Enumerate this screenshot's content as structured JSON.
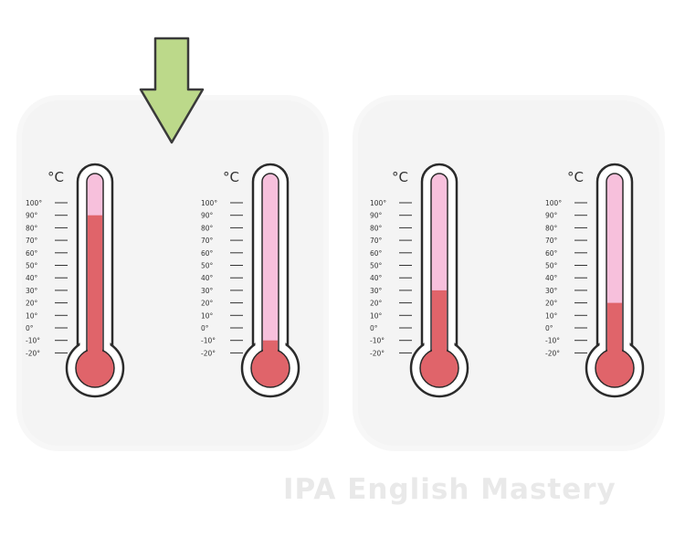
{
  "unit_symbol": "°C",
  "scale_labels": [
    "100°",
    "90°",
    "80°",
    "70°",
    "60°",
    "50°",
    "40°",
    "30°",
    "20°",
    "10°",
    "0°",
    "-10°",
    "-20°"
  ],
  "thermometers": [
    {
      "name": "thermometer-1",
      "reading_c": 90,
      "highlighted": true
    },
    {
      "name": "thermometer-2",
      "reading_c": -10,
      "highlighted": false
    },
    {
      "name": "thermometer-3",
      "reading_c": 30,
      "highlighted": false
    },
    {
      "name": "thermometer-4",
      "reading_c": 20,
      "highlighted": false
    }
  ],
  "watermark": "IPA English Mastery",
  "colors": {
    "mercury": "#e0646a",
    "tube_empty": "#f7c0dc",
    "outline": "#2b2b2b",
    "arrow_fill": "#bcd98a",
    "panel": "#f4f4f4"
  }
}
